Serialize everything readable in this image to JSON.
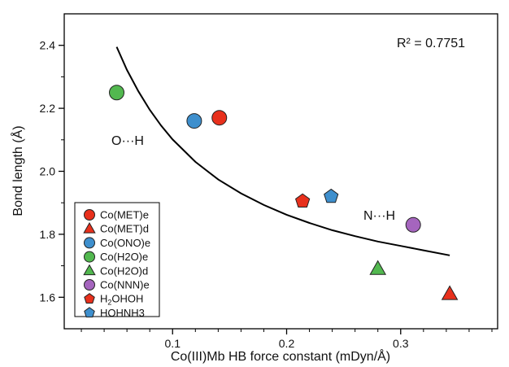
{
  "chart_data": {
    "type": "scatter",
    "title": "",
    "xlabel": "Co(III)Mb HB force constant (mDyn/Å)",
    "ylabel": "Bond length (Å)",
    "xlim": [
      0.005,
      0.385
    ],
    "ylim": [
      1.5,
      2.5
    ],
    "x_ticks": [
      0.1,
      0.2,
      0.3
    ],
    "x_tick_labels": [
      "0.1",
      "0.2",
      "0.3"
    ],
    "y_ticks": [
      1.6,
      1.8,
      2.0,
      2.2,
      2.4
    ],
    "y_tick_labels": [
      "1.6",
      "1.8",
      "2.0",
      "2.2",
      "2.4"
    ],
    "grid": false,
    "legend_position": "bottom-left",
    "series": [
      {
        "name": "Co(MET)e",
        "marker": "circle",
        "color": "#e8301c",
        "points": [
          [
            0.141,
            2.17
          ]
        ]
      },
      {
        "name": "Co(MET)d",
        "marker": "triangle",
        "color": "#e8301c",
        "points": [
          [
            0.343,
            1.61
          ]
        ]
      },
      {
        "name": "Co(ONO)e",
        "marker": "circle",
        "color": "#3e8fcd",
        "points": [
          [
            0.119,
            2.16
          ]
        ]
      },
      {
        "name": "Co(H2O)e",
        "marker": "circle",
        "color": "#52b84f",
        "points": [
          [
            0.051,
            2.25
          ]
        ]
      },
      {
        "name": "Co(H2O)d",
        "marker": "triangle",
        "color": "#52b84f",
        "points": [
          [
            0.28,
            1.69
          ]
        ]
      },
      {
        "name": "Co(NNN)e",
        "marker": "circle",
        "color": "#a565be",
        "points": [
          [
            0.311,
            1.83
          ]
        ]
      },
      {
        "name": "H2OHOH",
        "marker": "pentagon",
        "color": "#e8301c",
        "points": [
          [
            0.214,
            1.905
          ]
        ]
      },
      {
        "name": "HOHNH3",
        "marker": "pentagon",
        "color": "#3e8fcd",
        "points": [
          [
            0.239,
            1.92
          ]
        ]
      }
    ],
    "fit_curve": {
      "x": [
        0.051,
        0.06,
        0.07,
        0.08,
        0.09,
        0.1,
        0.12,
        0.14,
        0.16,
        0.18,
        0.2,
        0.22,
        0.24,
        0.26,
        0.28,
        0.3,
        0.32,
        0.343
      ],
      "y": [
        2.395,
        2.322,
        2.254,
        2.195,
        2.145,
        2.101,
        2.03,
        1.974,
        1.93,
        1.893,
        1.862,
        1.836,
        1.813,
        1.794,
        1.777,
        1.763,
        1.749,
        1.733
      ],
      "color": "#000000"
    },
    "annotations": {
      "r_squared": "R² = 0.7751",
      "oh_label": "O···H",
      "nh_label": "N···H"
    }
  }
}
